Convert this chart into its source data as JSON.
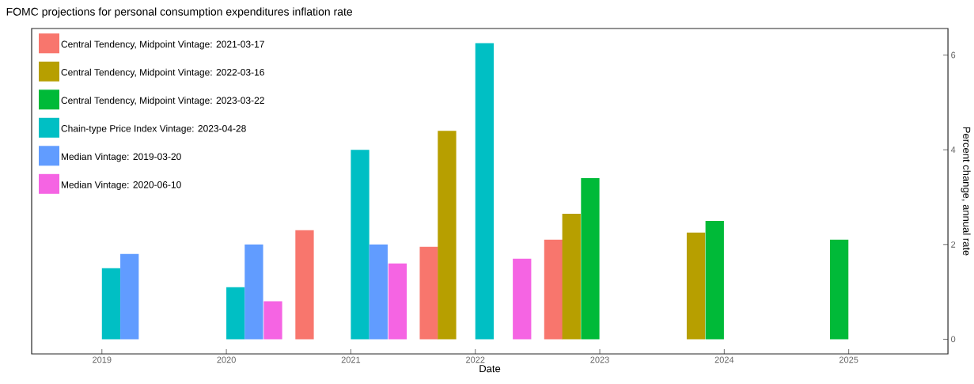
{
  "chart_data": {
    "type": "bar",
    "title": "FOMC projections for personal consumption expenditures inflation rate",
    "xlabel": "Date",
    "ylabel": "Percent change, annual rate",
    "series": [
      {
        "name": "Central Tendency, Midpoint Vintage: 2021-03-17",
        "color": "#f8766d",
        "x": [
          "2020-08-18",
          "2021-08-18",
          "2022-08-18"
        ],
        "values": [
          2.3,
          1.95,
          2.1
        ]
      },
      {
        "name": "Central Tendency, Midpoint Vintage: 2022-03-16",
        "color": "#b79f00",
        "x": [
          "2021-10-10",
          "2022-10-10",
          "2023-10-10"
        ],
        "values": [
          4.4,
          2.65,
          2.25
        ]
      },
      {
        "name": "Central Tendency, Midpoint Vintage: 2023-03-22",
        "color": "#00ba38",
        "x": [
          "2022-12-04",
          "2023-12-04",
          "2024-12-04"
        ],
        "values": [
          3.4,
          2.5,
          2.1
        ]
      },
      {
        "name": "Chain-type Price Index Vintage: 2023-04-28",
        "color": "#00bfc4",
        "x": [
          "2019-01-28",
          "2020-01-28",
          "2021-01-28",
          "2022-01-28"
        ],
        "values": [
          1.5,
          1.1,
          4.0,
          6.25
        ]
      },
      {
        "name": "Median Vintage: 2019-03-20",
        "color": "#619cff",
        "x": [
          "2019-03-23",
          "2020-03-22",
          "2021-03-23"
        ],
        "values": [
          1.8,
          2.0,
          2.0
        ]
      },
      {
        "name": "Median Vintage: 2020-06-10",
        "color": "#f564e3",
        "x": [
          "2020-05-17",
          "2021-05-18",
          "2022-05-18"
        ],
        "values": [
          0.8,
          1.6,
          1.7
        ]
      }
    ],
    "xlim": [
      "2018-06-09",
      "2025-10-19"
    ],
    "xticks": [
      "2019",
      "2020",
      "2021",
      "2022",
      "2023",
      "2024",
      "2025"
    ],
    "ylim": [
      -0.31,
      6.56
    ],
    "yticks": [
      0,
      2,
      4,
      6
    ],
    "legend": "top left",
    "grid": false
  }
}
